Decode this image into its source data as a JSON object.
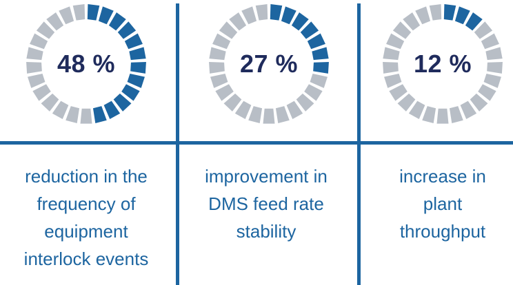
{
  "colors": {
    "accent": "#1d65a0",
    "inactive": "#b8bec6",
    "value_text": "#1f2b5c"
  },
  "stats": [
    {
      "value_label": "48 %",
      "fraction": 0.48,
      "caption_lines": [
        "reduction in the",
        "frequency of",
        "equipment",
        "interlock events"
      ]
    },
    {
      "value_label": "27 %",
      "fraction": 0.27,
      "caption_lines": [
        "improvement in",
        "DMS feed rate",
        "stability"
      ]
    },
    {
      "value_label": "12 %",
      "fraction": 0.12,
      "caption_lines": [
        "increase in",
        "plant",
        "throughput"
      ]
    }
  ]
}
